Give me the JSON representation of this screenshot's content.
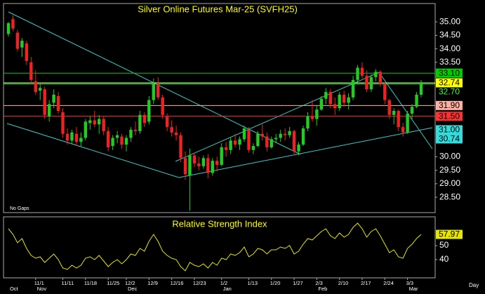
{
  "chart_data": {
    "type": "candlestick",
    "title": "Silver Online Futures Mar-25 (SVFH25)",
    "annotation": "No Gaps",
    "x_axis_label": "Day",
    "categories": [
      null,
      null,
      null,
      null,
      null,
      null,
      "11/1",
      null,
      null,
      null,
      null,
      null,
      "11/11",
      null,
      null,
      null,
      null,
      "11/18",
      null,
      null,
      null,
      null,
      "11/25",
      null,
      null,
      null,
      "12/2",
      null,
      null,
      null,
      null,
      "12/9",
      null,
      null,
      null,
      null,
      "12/16",
      null,
      null,
      null,
      null,
      "12/23",
      null,
      null,
      null,
      null,
      null,
      "1/2",
      null,
      null,
      null,
      null,
      null,
      "1/13",
      null,
      null,
      null,
      null,
      "1/20",
      null,
      null,
      null,
      null,
      "1/27",
      null,
      null,
      null,
      null,
      "2/3",
      null,
      null,
      null,
      null,
      "2/10",
      null,
      null,
      null,
      null,
      "2/17",
      null,
      null,
      null,
      null,
      "2/24",
      null,
      null,
      null,
      null,
      "3/3",
      null,
      null,
      null
    ],
    "months": [
      "Oct",
      null,
      null,
      null,
      null,
      null,
      "Nov",
      null,
      null,
      null,
      null,
      null,
      null,
      null,
      null,
      null,
      null,
      null,
      null,
      null,
      null,
      null,
      null,
      null,
      null,
      null,
      "Dec",
      null,
      null,
      null,
      null,
      null,
      null,
      null,
      null,
      null,
      null,
      null,
      null,
      null,
      null,
      null,
      null,
      null,
      null,
      null,
      null,
      "Jan",
      null,
      null,
      null,
      null,
      null,
      null,
      null,
      null,
      null,
      null,
      null,
      null,
      null,
      null,
      null,
      null,
      null,
      null,
      null,
      null,
      "Feb",
      null,
      null,
      null,
      null,
      null,
      null,
      null,
      null,
      null,
      null,
      null,
      null,
      null,
      null,
      null,
      null,
      null,
      null,
      null,
      "Mar",
      null,
      null,
      null
    ],
    "open": [
      34.55,
      35.1,
      34.6,
      34.05,
      34.2,
      33.5,
      32.8,
      32.45,
      32.5,
      31.5,
      32,
      32.25,
      31.65,
      30.85,
      30.6,
      30.85,
      30.55,
      30.7,
      31.25,
      31.35,
      31.2,
      31.4,
      30.95,
      30.4,
      30.7,
      30.75,
      30.45,
      30.7,
      31,
      30.95,
      31.55,
      31.3,
      32.1,
      32.7,
      32.2,
      31.5,
      31.1,
      30.9,
      30.8,
      29.95,
      29.3,
      30.05,
      29.75,
      29.65,
      29.95,
      29.4,
      29.85,
      29.7,
      30.35,
      30.25,
      30.6,
      30.45,
      30.65,
      31,
      30.25,
      30.4,
      30.85,
      30.75,
      30.35,
      30.65,
      30.7,
      30.85,
      30.8,
      30.95,
      30.2,
      30.45,
      31.05,
      31.5,
      31.4,
      31.75,
      32.15,
      32.4,
      31.95,
      31.8,
      32.3,
      32,
      32.2,
      32.85,
      33.3,
      33,
      32.5,
      32.95,
      33.15,
      32.7,
      32.1,
      31.55,
      31.7,
      31.1,
      30.9,
      31.6,
      31.85,
      32.3
    ],
    "high": [
      35,
      35.25,
      34.7,
      34.4,
      34.3,
      33.7,
      33.2,
      32.7,
      32.6,
      32.1,
      32.5,
      32.4,
      31.8,
      31.05,
      31,
      31.1,
      30.9,
      31.4,
      31.5,
      31.7,
      31.55,
      31.5,
      31.1,
      30.8,
      30.95,
      30.85,
      30.8,
      31.1,
      31.3,
      31.7,
      31.65,
      32.25,
      32.9,
      32.95,
      32.3,
      31.6,
      31.35,
      31.15,
      30.9,
      30.2,
      30.3,
      30.15,
      30,
      30.05,
      30.1,
      29.95,
      30,
      30.5,
      30.55,
      30.7,
      30.85,
      30.75,
      31.15,
      31.1,
      30.5,
      30.95,
      31.2,
      30.9,
      30.75,
      30.85,
      31,
      31.05,
      31.1,
      31,
      30.55,
      31.15,
      31.65,
      32.1,
      31.9,
      32.25,
      32.55,
      32.5,
      32.2,
      32.4,
      32.45,
      32.35,
      33,
      33.4,
      33.5,
      33.2,
      33.05,
      33.25,
      33.2,
      32.75,
      32.15,
      31.8,
      31.75,
      31.25,
      31.7,
      31.95,
      32.4,
      32.85
    ],
    "low": [
      34.45,
      34.65,
      33.9,
      33.7,
      33.4,
      32.7,
      32.3,
      32.1,
      31.4,
      31.3,
      31.8,
      31.6,
      30.7,
      30.45,
      30.5,
      30.4,
      30.4,
      30.6,
      31,
      31.1,
      30.85,
      30.8,
      30.2,
      30.25,
      30.5,
      30.3,
      30.2,
      30.55,
      30.8,
      30.85,
      31.1,
      31.2,
      31.95,
      32.1,
      31.4,
      30.95,
      30.75,
      30.6,
      29.8,
      29.15,
      28,
      29.6,
      29.5,
      29.55,
      29.2,
      29.3,
      29.45,
      29.65,
      30,
      30.1,
      30.35,
      30.25,
      30.55,
      30.15,
      30.1,
      30.35,
      30.6,
      30.2,
      30.3,
      30.5,
      30.55,
      30.6,
      30.7,
      30.05,
      30.05,
      30.4,
      30.95,
      31.3,
      31.15,
      31.7,
      31.95,
      31.8,
      31.55,
      31.7,
      31.85,
      31.75,
      32.1,
      32.7,
      32.9,
      32.4,
      32.4,
      32.8,
      32.6,
      31.95,
      31.4,
      31.2,
      30.95,
      30.75,
      30.85,
      31.4,
      31.8,
      32.2
    ],
    "close": [
      34.95,
      34.75,
      34,
      34.3,
      33.55,
      32.85,
      32.4,
      32.55,
      31.55,
      31.95,
      32.3,
      31.7,
      30.85,
      30.6,
      30.9,
      30.55,
      30.7,
      31.3,
      31.35,
      31.2,
      31.4,
      30.95,
      30.35,
      30.7,
      30.8,
      30.45,
      30.7,
      31,
      30.95,
      31.55,
      31.25,
      32.1,
      32.7,
      32.2,
      31.55,
      31.1,
      30.9,
      30.8,
      29.95,
      29.35,
      30.05,
      29.75,
      29.65,
      29.95,
      29.4,
      29.85,
      29.7,
      30.35,
      30.25,
      30.6,
      30.45,
      30.65,
      31.05,
      30.25,
      30.4,
      30.85,
      30.75,
      30.35,
      30.65,
      30.7,
      30.85,
      30.8,
      30.95,
      30.2,
      30.45,
      31.05,
      31.5,
      31.4,
      31.75,
      32.15,
      32.4,
      31.95,
      31.8,
      32.3,
      32,
      32.2,
      32.85,
      33.3,
      33,
      32.5,
      32.95,
      33.15,
      32.7,
      32.1,
      31.55,
      31.7,
      31.1,
      30.9,
      31.6,
      31.85,
      32.3,
      32.74
    ],
    "up_color": "#22cc22",
    "down_color": "#ee2222",
    "last_color": "#ffff00",
    "ylim": [
      27.93,
      35.68
    ],
    "yticks": [
      {
        "value": 35,
        "label": "35.00"
      },
      {
        "value": 34.5,
        "label": "34.50"
      },
      {
        "value": 34,
        "label": "34.00"
      },
      {
        "value": 33.5,
        "label": "33.50"
      },
      {
        "value": 30,
        "label": "30.00"
      },
      {
        "value": 29.5,
        "label": "29.50"
      },
      {
        "value": 29,
        "label": "29.00"
      },
      {
        "value": 28.5,
        "label": "28.50"
      }
    ],
    "levels": [
      {
        "value": 33.1,
        "label": "33.10",
        "color": "#00cc00",
        "text_color": "#000000",
        "line": true
      },
      {
        "value": 32.7,
        "label": "32.70",
        "color": "#000000",
        "text_color": "#33ff33",
        "line": true
      },
      {
        "value": 31.9,
        "label": "31.90",
        "color": "#ffb0a0",
        "text_color": "#000000",
        "line": true
      },
      {
        "value": 31.5,
        "label": "31.50",
        "color": "#ff3030",
        "text_color": "#000000",
        "line": true
      },
      {
        "value": 31,
        "label": "31.00",
        "color": "#33dddd",
        "text_color": "#000000",
        "line": false
      },
      {
        "value": 30.74,
        "color": "#33dddd",
        "text_color": "#000000",
        "line": false
      }
    ],
    "rsi": {
      "type": "line",
      "title": "Relative Strength Index",
      "color": "#e6e600",
      "values": [
        62,
        58,
        52,
        55,
        48,
        43,
        41,
        42,
        38,
        41,
        44,
        40,
        34,
        33,
        36,
        34,
        36,
        41,
        42,
        40,
        43,
        39,
        35,
        38,
        40,
        37,
        40,
        44,
        43,
        48,
        46,
        53,
        58,
        53,
        46,
        43,
        41,
        40,
        35,
        32,
        38,
        36,
        35,
        37,
        34,
        38,
        36,
        41,
        40,
        44,
        43,
        45,
        49,
        42,
        44,
        48,
        47,
        44,
        47,
        47,
        49,
        48,
        50,
        44,
        46,
        51,
        55,
        54,
        57,
        60,
        62,
        57,
        55,
        59,
        56,
        58,
        63,
        66,
        62,
        56,
        60,
        62,
        57,
        51,
        45,
        47,
        42,
        41,
        48,
        51,
        55,
        57.97
      ],
      "ylim": [
        27,
        70.5
      ],
      "yticks": [
        50,
        40
      ]
    }
  }
}
